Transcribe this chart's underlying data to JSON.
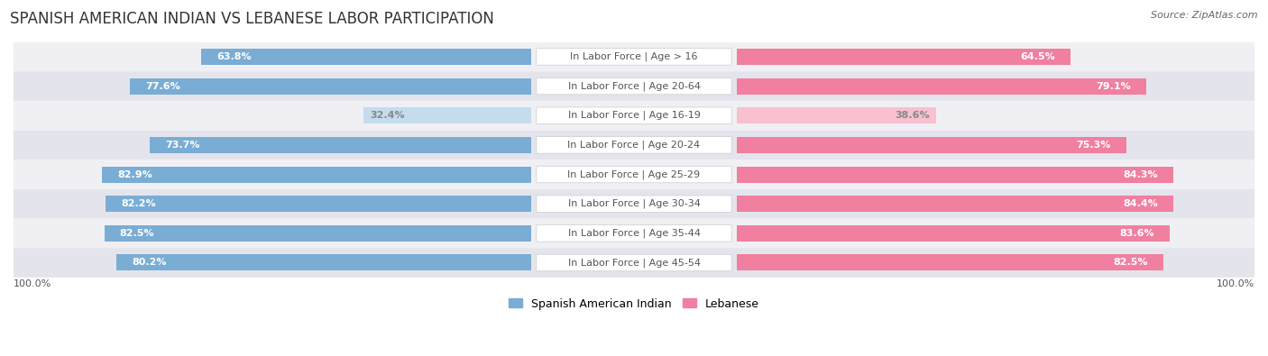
{
  "title": "SPANISH AMERICAN INDIAN VS LEBANESE LABOR PARTICIPATION",
  "source": "Source: ZipAtlas.com",
  "categories": [
    "In Labor Force | Age > 16",
    "In Labor Force | Age 20-64",
    "In Labor Force | Age 16-19",
    "In Labor Force | Age 20-24",
    "In Labor Force | Age 25-29",
    "In Labor Force | Age 30-34",
    "In Labor Force | Age 35-44",
    "In Labor Force | Age 45-54"
  ],
  "spanish_values": [
    63.8,
    77.6,
    32.4,
    73.7,
    82.9,
    82.2,
    82.5,
    80.2
  ],
  "lebanese_values": [
    64.5,
    79.1,
    38.6,
    75.3,
    84.3,
    84.4,
    83.6,
    82.5
  ],
  "spanish_color": "#7aadd4",
  "lebanese_color": "#f07fa0",
  "spanish_light_color": "#c5dcee",
  "lebanese_light_color": "#f9c0d0",
  "row_bg_colors": [
    "#f0f0f4",
    "#e4e4ec"
  ],
  "title_fontsize": 12,
  "label_fontsize": 8,
  "value_fontsize": 8,
  "legend_fontsize": 9,
  "max_value": 100.0,
  "bar_height": 0.55,
  "background_color": "#ffffff",
  "label_box_color": "#ffffff",
  "label_text_color": "#555555"
}
